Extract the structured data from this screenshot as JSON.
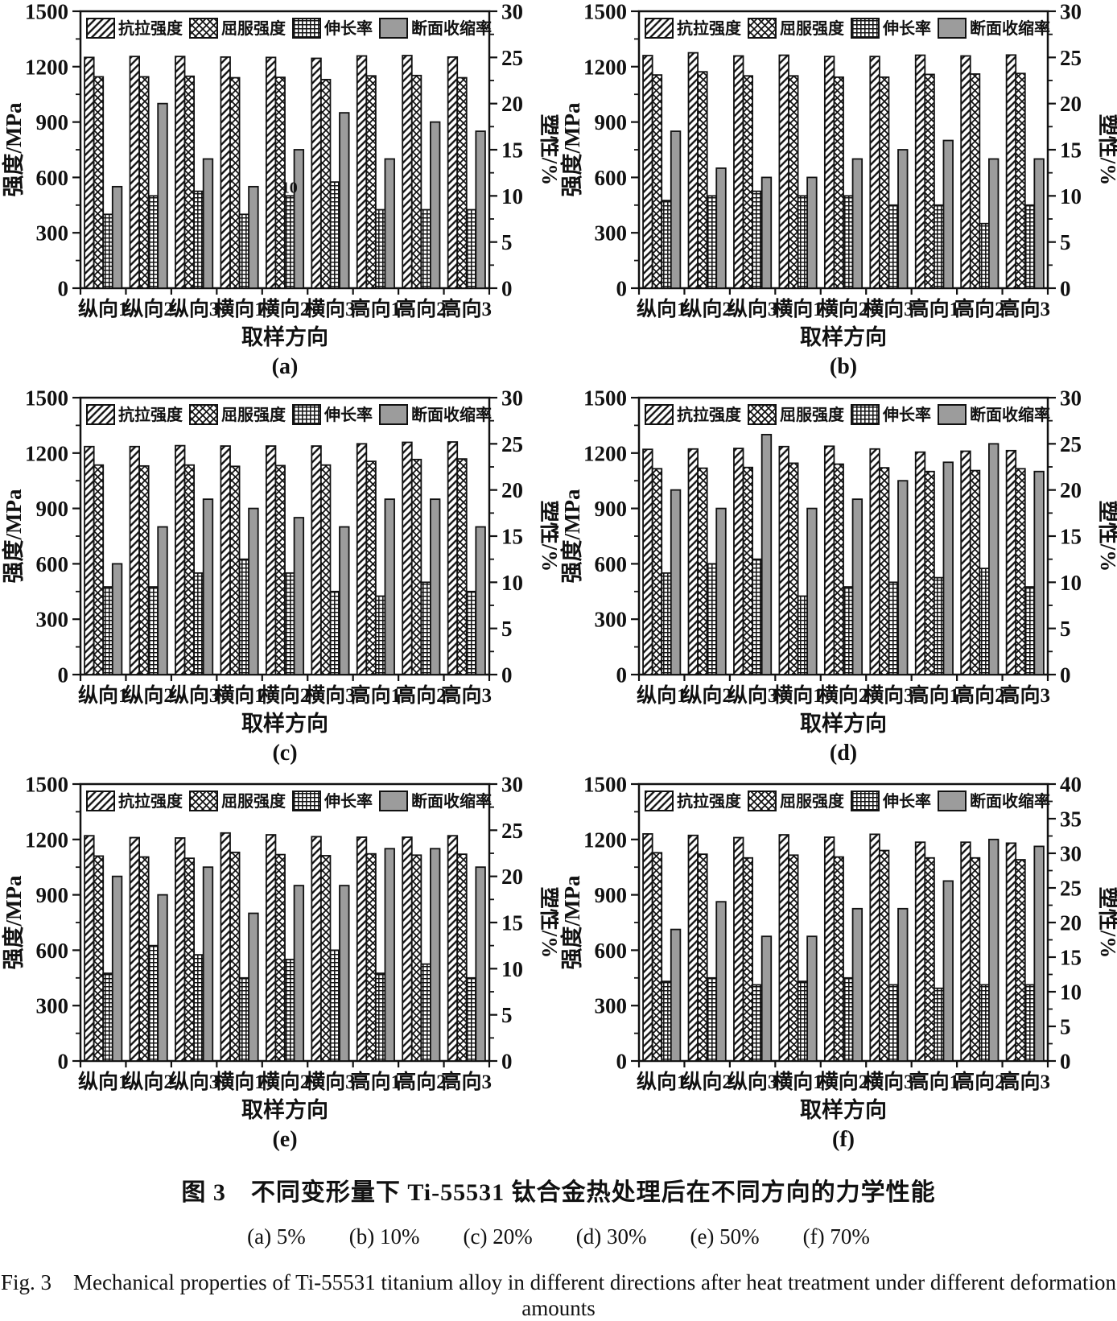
{
  "figure": {
    "caption_zh": "图 3　不同变形量下 Ti-55531 钛合金热处理后在不同方向的力学性能",
    "caption_sub": "(a) 5%　　(b) 10%　　(c) 20%　　(d) 30%　　(e) 50%　　(f) 70%",
    "caption_en": "Fig. 3　Mechanical properties of Ti-55531 titanium alloy in different directions after heat treatment under different deformation amounts"
  },
  "colors": {
    "ink": "#111111",
    "bar_solid": "#9c9c9c"
  },
  "chart_data": [
    {
      "id": "a",
      "label": "(a)",
      "type": "bar",
      "categories": [
        "纵向1",
        "纵向2",
        "纵向3",
        "横向1",
        "横向2",
        "横向3",
        "高向1",
        "高向2",
        "高向3"
      ],
      "xlabel": "取样方向",
      "ylabel_left": "强度/MPa",
      "ylabel_right": "塑性/%",
      "ylim_left": [
        0,
        1500
      ],
      "yticks_left": [
        0,
        300,
        600,
        900,
        1200,
        1500
      ],
      "ylim_right": [
        0,
        30
      ],
      "yticks_right": [
        0,
        5,
        10,
        15,
        20,
        25,
        30
      ],
      "series": [
        {
          "name": "抗拉强度",
          "axis": "left",
          "pattern": "diag",
          "values": [
            1250,
            1255,
            1255,
            1252,
            1250,
            1245,
            1258,
            1260,
            1252
          ]
        },
        {
          "name": "屈服强度",
          "axis": "left",
          "pattern": "cross",
          "values": [
            1145,
            1145,
            1148,
            1140,
            1142,
            1130,
            1150,
            1152,
            1140
          ]
        },
        {
          "name": "伸长率",
          "axis": "right",
          "pattern": "grid",
          "values": [
            8,
            10,
            10.5,
            8,
            10,
            11.5,
            8.5,
            8.5,
            8.5
          ]
        },
        {
          "name": "断面收缩率",
          "axis": "right",
          "pattern": "solid",
          "values": [
            11,
            20,
            14,
            11,
            15,
            19,
            14,
            18,
            17
          ]
        }
      ],
      "annotations": [
        {
          "text": "10",
          "group": 4,
          "series": 2
        }
      ]
    },
    {
      "id": "b",
      "label": "(b)",
      "type": "bar",
      "categories": [
        "纵向1",
        "纵向2",
        "纵向3",
        "横向1",
        "横向2",
        "横向3",
        "高向1",
        "高向2",
        "高向3"
      ],
      "xlabel": "取样方向",
      "ylabel_left": "强度/MPa",
      "ylabel_right": "塑性/%",
      "ylim_left": [
        0,
        1500
      ],
      "yticks_left": [
        0,
        300,
        600,
        900,
        1200,
        1500
      ],
      "ylim_right": [
        0,
        30
      ],
      "yticks_right": [
        0,
        5,
        10,
        15,
        20,
        25,
        30
      ],
      "series": [
        {
          "name": "抗拉强度",
          "axis": "left",
          "pattern": "diag",
          "values": [
            1260,
            1275,
            1258,
            1262,
            1255,
            1255,
            1262,
            1258,
            1263
          ]
        },
        {
          "name": "屈服强度",
          "axis": "left",
          "pattern": "cross",
          "values": [
            1155,
            1172,
            1150,
            1150,
            1143,
            1143,
            1158,
            1160,
            1163
          ]
        },
        {
          "name": "伸长率",
          "axis": "right",
          "pattern": "grid",
          "values": [
            9.5,
            10,
            10.5,
            10,
            10,
            9,
            9,
            7,
            9
          ]
        },
        {
          "name": "断面收缩率",
          "axis": "right",
          "pattern": "solid",
          "values": [
            17,
            13,
            12,
            12,
            14,
            15,
            16,
            14,
            14
          ]
        }
      ],
      "annotations": []
    },
    {
      "id": "c",
      "label": "(c)",
      "type": "bar",
      "categories": [
        "纵向1",
        "纵向2",
        "纵向3",
        "横向1",
        "横向2",
        "横向3",
        "高向1",
        "高向2",
        "高向3"
      ],
      "xlabel": "取样方向",
      "ylabel_left": "强度/MPa",
      "ylabel_right": "塑性/%",
      "ylim_left": [
        0,
        1500
      ],
      "yticks_left": [
        0,
        300,
        600,
        900,
        1200,
        1500
      ],
      "ylim_right": [
        0,
        30
      ],
      "yticks_right": [
        0,
        5,
        10,
        15,
        20,
        25,
        30
      ],
      "series": [
        {
          "name": "抗拉强度",
          "axis": "left",
          "pattern": "diag",
          "values": [
            1235,
            1235,
            1240,
            1238,
            1238,
            1238,
            1250,
            1258,
            1260
          ]
        },
        {
          "name": "屈服强度",
          "axis": "left",
          "pattern": "cross",
          "values": [
            1135,
            1130,
            1135,
            1128,
            1132,
            1135,
            1155,
            1165,
            1168
          ]
        },
        {
          "name": "伸长率",
          "axis": "right",
          "pattern": "grid",
          "values": [
            9.5,
            9.5,
            11,
            12.5,
            11,
            9,
            8.5,
            10,
            9
          ]
        },
        {
          "name": "断面收缩率",
          "axis": "right",
          "pattern": "solid",
          "values": [
            12,
            16,
            19,
            18,
            17,
            16,
            19,
            19,
            16
          ]
        }
      ],
      "annotations": []
    },
    {
      "id": "d",
      "label": "(d)",
      "type": "bar",
      "categories": [
        "纵向1",
        "纵向2",
        "纵向3",
        "横向1",
        "横向2",
        "横向3",
        "高向1",
        "高向2",
        "高向3"
      ],
      "xlabel": "取样方向",
      "ylabel_left": "强度/MPa",
      "ylabel_right": "塑性/%",
      "ylim_left": [
        0,
        1500
      ],
      "yticks_left": [
        0,
        300,
        600,
        900,
        1200,
        1500
      ],
      "ylim_right": [
        0,
        30
      ],
      "yticks_right": [
        0,
        5,
        10,
        15,
        20,
        25,
        30
      ],
      "series": [
        {
          "name": "抗拉强度",
          "axis": "left",
          "pattern": "diag",
          "values": [
            1220,
            1222,
            1225,
            1235,
            1237,
            1222,
            1205,
            1210,
            1213
          ]
        },
        {
          "name": "屈服强度",
          "axis": "left",
          "pattern": "cross",
          "values": [
            1115,
            1118,
            1122,
            1145,
            1140,
            1120,
            1100,
            1105,
            1115
          ]
        },
        {
          "name": "伸长率",
          "axis": "right",
          "pattern": "grid",
          "values": [
            11,
            12,
            12.5,
            8.5,
            9.5,
            10,
            10.5,
            11.5,
            9.5
          ]
        },
        {
          "name": "断面收缩率",
          "axis": "right",
          "pattern": "solid",
          "values": [
            20,
            18,
            26,
            18,
            19,
            21,
            23,
            25,
            22
          ]
        }
      ],
      "annotations": []
    },
    {
      "id": "e",
      "label": "(e)",
      "type": "bar",
      "categories": [
        "纵向1",
        "纵向2",
        "纵向3",
        "横向1",
        "横向2",
        "横向3",
        "高向1",
        "高向2",
        "高向3"
      ],
      "xlabel": "取样方向",
      "ylabel_left": "强度/MPa",
      "ylabel_right": "塑性/%",
      "ylim_left": [
        0,
        1500
      ],
      "yticks_left": [
        0,
        300,
        600,
        900,
        1200,
        1500
      ],
      "ylim_right": [
        0,
        30
      ],
      "yticks_right": [
        0,
        5,
        10,
        15,
        20,
        25,
        30
      ],
      "series": [
        {
          "name": "抗拉强度",
          "axis": "left",
          "pattern": "diag",
          "values": [
            1220,
            1210,
            1208,
            1235,
            1225,
            1215,
            1212,
            1212,
            1220
          ]
        },
        {
          "name": "屈服强度",
          "axis": "left",
          "pattern": "cross",
          "values": [
            1110,
            1105,
            1098,
            1130,
            1118,
            1112,
            1122,
            1115,
            1120
          ]
        },
        {
          "name": "伸长率",
          "axis": "right",
          "pattern": "grid",
          "values": [
            9.5,
            12.5,
            11.5,
            9,
            11,
            12,
            9.5,
            10.5,
            9
          ]
        },
        {
          "name": "断面收缩率",
          "axis": "right",
          "pattern": "solid",
          "values": [
            20,
            18,
            21,
            16,
            19,
            19,
            23,
            23,
            21
          ]
        }
      ],
      "annotations": []
    },
    {
      "id": "f",
      "label": "(f)",
      "type": "bar",
      "categories": [
        "纵向1",
        "纵向2",
        "纵向3",
        "横向1",
        "横向2",
        "横向3",
        "高向1",
        "高向2",
        "高向3"
      ],
      "xlabel": "取样方向",
      "ylabel_left": "强度/MPa",
      "ylabel_right": "塑性/%",
      "ylim_left": [
        0,
        1500
      ],
      "yticks_left": [
        0,
        300,
        600,
        900,
        1200,
        1500
      ],
      "ylim_right": [
        0,
        40
      ],
      "yticks_right": [
        0,
        5,
        10,
        15,
        20,
        25,
        30,
        35,
        40
      ],
      "series": [
        {
          "name": "抗拉强度",
          "axis": "left",
          "pattern": "diag",
          "values": [
            1230,
            1222,
            1210,
            1225,
            1212,
            1228,
            1185,
            1185,
            1180
          ]
        },
        {
          "name": "屈服强度",
          "axis": "left",
          "pattern": "cross",
          "values": [
            1128,
            1120,
            1100,
            1115,
            1105,
            1140,
            1100,
            1100,
            1090
          ]
        },
        {
          "name": "伸长率",
          "axis": "right",
          "pattern": "grid",
          "values": [
            11.5,
            12,
            11,
            11.5,
            12,
            11,
            10.5,
            11,
            11
          ]
        },
        {
          "name": "断面收缩率",
          "axis": "right",
          "pattern": "solid",
          "values": [
            19,
            23,
            18,
            18,
            22,
            22,
            26,
            32,
            31
          ]
        }
      ],
      "annotations": []
    }
  ]
}
